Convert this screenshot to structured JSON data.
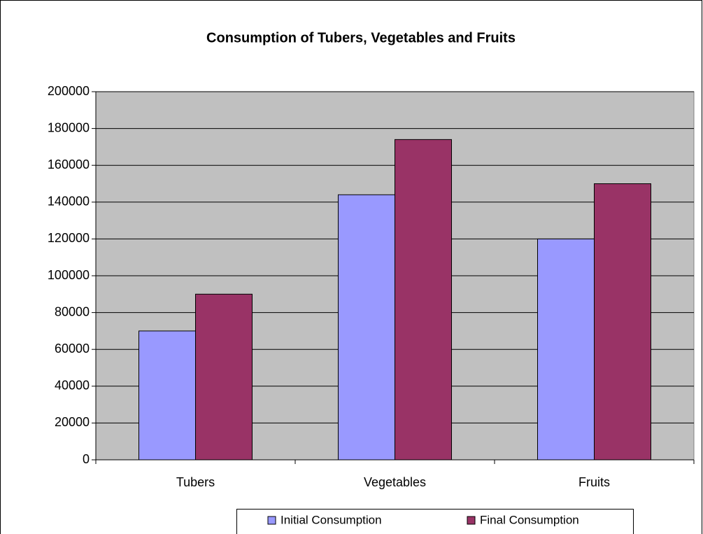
{
  "chart_data": {
    "type": "bar",
    "title": "Consumption of Tubers, Vegetables and Fruits",
    "categories": [
      "Tubers",
      "Vegetables",
      "Fruits"
    ],
    "series": [
      {
        "name": "Initial Consumption",
        "color": "#9999ff",
        "values": [
          70000,
          144000,
          120000
        ]
      },
      {
        "name": "Final Consumption",
        "color": "#993366",
        "values": [
          90000,
          174000,
          150000
        ]
      }
    ],
    "ylim": [
      0,
      200000
    ],
    "yticks": [
      0,
      20000,
      40000,
      60000,
      80000,
      100000,
      120000,
      140000,
      160000,
      180000,
      200000
    ],
    "grid": true,
    "legend": "bottom"
  }
}
